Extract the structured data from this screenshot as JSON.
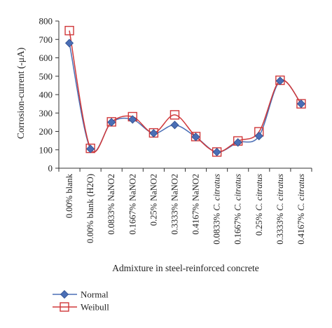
{
  "chart_data": {
    "type": "line",
    "xlabel": "Admixture in steel-reinforced concrete",
    "ylabel": "Corrosion-current (-μA)",
    "ylim": [
      0,
      800
    ],
    "yticks": [
      0,
      100,
      200,
      300,
      400,
      500,
      600,
      700,
      800
    ],
    "grid": false,
    "legend_placement": "bottom-left",
    "categories": [
      {
        "text": "0.00% blank",
        "italic": ""
      },
      {
        "text": "0.00% blank (H2O)",
        "italic": ""
      },
      {
        "text": "0.0833% NaNO2",
        "italic": ""
      },
      {
        "text": "0.1667% NaNO2",
        "italic": ""
      },
      {
        "text": "0.25% NaNO2",
        "italic": ""
      },
      {
        "text": "0.3333% NaNO2",
        "italic": ""
      },
      {
        "text": "0.4167% NaNO2",
        "italic": ""
      },
      {
        "text": "0.0833% ",
        "italic": "C. citratus"
      },
      {
        "text": "0.1667% ",
        "italic": "C. citratus"
      },
      {
        "text": "0.25% ",
        "italic": "C. citratus"
      },
      {
        "text": "0.3333% ",
        "italic": "C. citratus"
      },
      {
        "text": "0.4167% ",
        "italic": "C. citratus"
      }
    ],
    "series": [
      {
        "name": "Normal",
        "marker": "diamond",
        "color": "#4a6eb5",
        "values": [
          680,
          105,
          250,
          265,
          190,
          235,
          170,
          88,
          140,
          175,
          475,
          350
        ]
      },
      {
        "name": "Weibull",
        "marker": "square",
        "color": "#d0383a",
        "values": [
          748,
          108,
          252,
          280,
          192,
          290,
          172,
          88,
          148,
          198,
          478,
          350
        ]
      }
    ]
  }
}
